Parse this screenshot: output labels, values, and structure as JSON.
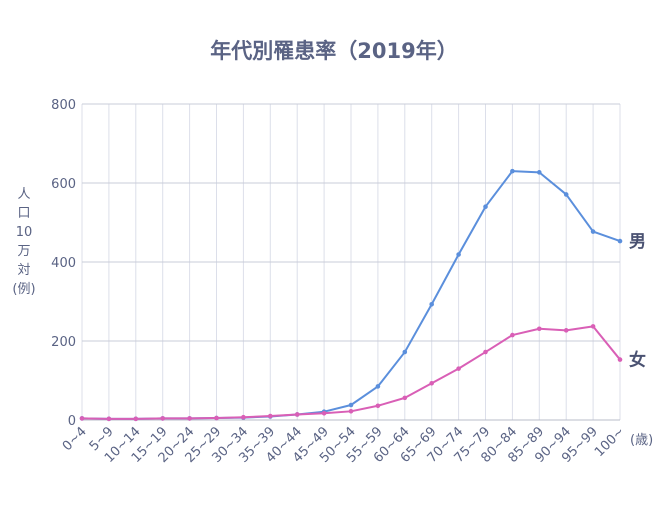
{
  "chart_data": {
    "type": "line",
    "title": "年代別罹患率（2019年）",
    "ylabel_lines": [
      "人",
      "口",
      "10",
      "万",
      "対",
      "(例)"
    ],
    "xlabel": "(歳)",
    "ylim": [
      0,
      800
    ],
    "yticks": [
      0,
      200,
      400,
      600,
      800
    ],
    "grid": true,
    "categories": [
      "0~4",
      "5~9",
      "10~14",
      "15~19",
      "20~24",
      "25~29",
      "30~34",
      "35~39",
      "40~44",
      "45~49",
      "50~54",
      "55~59",
      "60~64",
      "65~69",
      "70~74",
      "75~79",
      "80~84",
      "85~89",
      "90~94",
      "95~99",
      "100~"
    ],
    "series": [
      {
        "name": "男",
        "color": "#5b8fdc",
        "values": [
          4,
          3,
          3,
          4,
          4,
          5,
          6,
          9,
          14,
          21,
          38,
          85,
          172,
          293,
          419,
          540,
          630,
          627,
          571,
          477,
          453
        ]
      },
      {
        "name": "女",
        "color": "#d95fb6",
        "values": [
          4,
          3,
          3,
          4,
          4,
          5,
          7,
          10,
          14,
          17,
          22,
          36,
          56,
          93,
          130,
          172,
          215,
          231,
          227,
          237,
          153
        ]
      }
    ]
  }
}
